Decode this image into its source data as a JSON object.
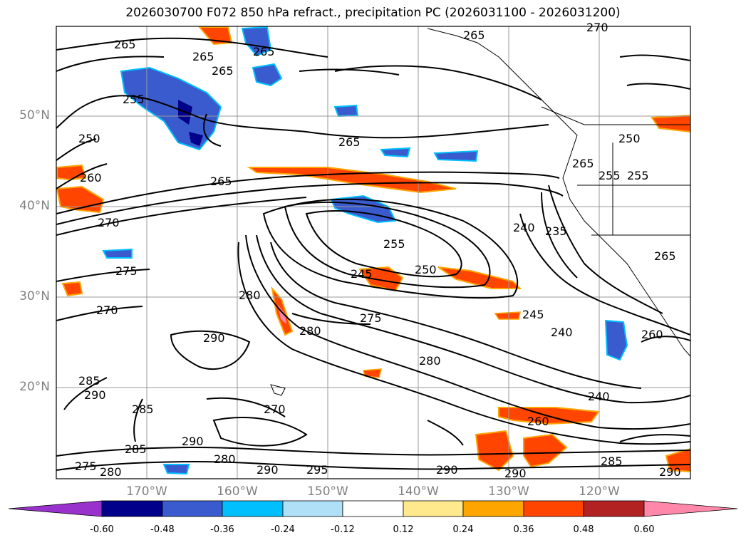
{
  "title": "2026030700 F072 850 hPa refract., precipitation PC (2026031100 - 2026031200)",
  "lat_labels": [
    "50°N",
    "40°N",
    "30°N",
    "20°N"
  ],
  "lon_labels": [
    "170°W",
    "160°W",
    "150°W",
    "140°W",
    "130°W",
    "120°W"
  ],
  "contour_labels": [
    "265",
    "265",
    "265",
    "265",
    "255",
    "250",
    "260",
    "265",
    "270",
    "275",
    "270",
    "290",
    "285",
    "290",
    "285",
    "285",
    "275",
    "280",
    "290",
    "280",
    "290",
    "295",
    "265",
    "265",
    "245",
    "255",
    "250",
    "280",
    "280",
    "275",
    "280",
    "245",
    "240",
    "270",
    "240",
    "235",
    "265",
    "255",
    "255",
    "265",
    "260",
    "260",
    "240",
    "285",
    "290",
    "290",
    "290",
    "270",
    "250"
  ],
  "colorbar": {
    "tick_labels": [
      "-0.60",
      "-0.48",
      "-0.36",
      "-0.24",
      "-0.12",
      "0.12",
      "0.24",
      "0.36",
      "0.48",
      "0.60"
    ],
    "colors": [
      "#9932cc",
      "#00008b",
      "#3a5bcd",
      "#00bfff",
      "#b0e0f8",
      "#ffffff",
      "#ffe98c",
      "#ffa500",
      "#ff4500",
      "#b22222",
      "#ff88aa"
    ]
  }
}
